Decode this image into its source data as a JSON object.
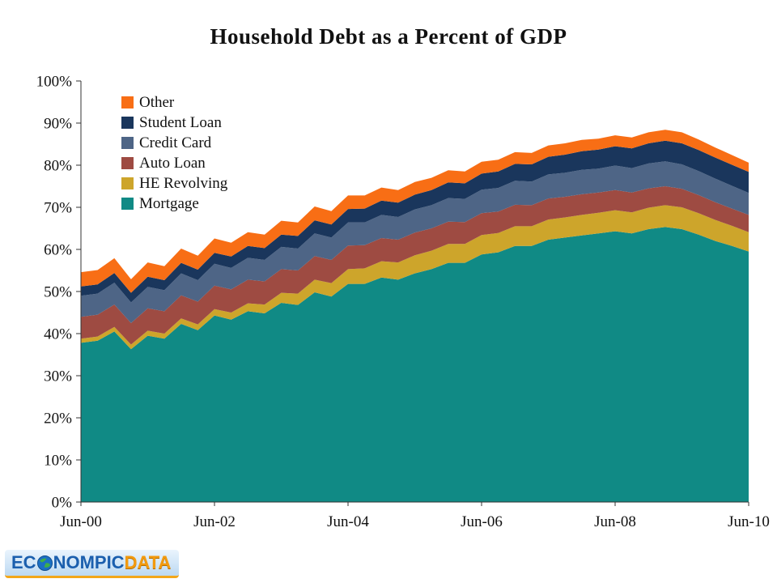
{
  "page": {
    "background": "#ffffff"
  },
  "logo": {
    "text_left": "EC",
    "text_mid": "NOMPIC",
    "text_right": "DATA",
    "blue": "#1b5fae",
    "orange": "#f29a10"
  },
  "chart_data": {
    "type": "area",
    "stacked": true,
    "title": "Household Debt as a Percent of GDP",
    "xlabel": "",
    "ylabel": "",
    "ylim": [
      0,
      100
    ],
    "grid": false,
    "legend_position": "top-left-inside",
    "y_ticks": [
      0,
      10,
      20,
      30,
      40,
      50,
      60,
      70,
      80,
      90,
      100
    ],
    "y_tick_labels": [
      "0%",
      "10%",
      "20%",
      "30%",
      "40%",
      "50%",
      "60%",
      "70%",
      "80%",
      "90%",
      "100%"
    ],
    "x": [
      "Jun-00",
      "Sep-00",
      "Dec-00",
      "Mar-01",
      "Jun-01",
      "Sep-01",
      "Dec-01",
      "Mar-02",
      "Jun-02",
      "Sep-02",
      "Dec-02",
      "Mar-03",
      "Jun-03",
      "Sep-03",
      "Dec-03",
      "Mar-04",
      "Jun-04",
      "Sep-04",
      "Dec-04",
      "Mar-05",
      "Jun-05",
      "Sep-05",
      "Dec-05",
      "Mar-06",
      "Jun-06",
      "Sep-06",
      "Dec-06",
      "Mar-07",
      "Jun-07",
      "Sep-07",
      "Dec-07",
      "Mar-08",
      "Jun-08",
      "Sep-08",
      "Dec-08",
      "Mar-09",
      "Jun-09",
      "Sep-09",
      "Dec-09",
      "Mar-10",
      "Jun-10"
    ],
    "x_ticks": [
      {
        "index": 0,
        "label": "Jun-00"
      },
      {
        "index": 8,
        "label": "Jun-02"
      },
      {
        "index": 16,
        "label": "Jun-04"
      },
      {
        "index": 24,
        "label": "Jun-06"
      },
      {
        "index": 32,
        "label": "Jun-08"
      },
      {
        "index": 40,
        "label": "Jun-10"
      }
    ],
    "series": [
      {
        "name": "Mortgage",
        "color": "#108a85",
        "values": [
          37.8,
          38.3,
          40.5,
          36.3,
          39.5,
          38.8,
          42.3,
          40.8,
          44.3,
          43.3,
          45.3,
          44.8,
          47.3,
          46.8,
          49.8,
          48.8,
          51.8,
          51.8,
          53.3,
          52.8,
          54.3,
          55.3,
          56.8,
          56.8,
          58.8,
          59.3,
          60.8,
          60.8,
          62.3,
          62.8,
          63.3,
          63.8,
          64.3,
          63.8,
          64.8,
          65.3,
          64.8,
          63.5,
          62.0,
          60.8,
          59.5
        ]
      },
      {
        "name": "HE Revolving",
        "color": "#cda52b",
        "values": [
          1.0,
          1.0,
          1.1,
          1.1,
          1.2,
          1.2,
          1.3,
          1.4,
          1.5,
          1.7,
          1.9,
          2.1,
          2.4,
          2.7,
          3.0,
          3.2,
          3.5,
          3.7,
          3.9,
          4.1,
          4.3,
          4.4,
          4.5,
          4.5,
          4.6,
          4.6,
          4.7,
          4.7,
          4.8,
          4.8,
          4.9,
          4.9,
          5.0,
          5.0,
          5.1,
          5.2,
          5.2,
          5.1,
          5.0,
          4.8,
          4.6
        ]
      },
      {
        "name": "Auto Loan",
        "color": "#9e4b42",
        "values": [
          5.2,
          5.2,
          5.3,
          5.1,
          5.3,
          5.3,
          5.5,
          5.4,
          5.6,
          5.5,
          5.6,
          5.5,
          5.6,
          5.5,
          5.6,
          5.5,
          5.6,
          5.5,
          5.5,
          5.4,
          5.4,
          5.3,
          5.3,
          5.2,
          5.2,
          5.1,
          5.1,
          5.0,
          5.0,
          4.9,
          4.9,
          4.8,
          4.8,
          4.7,
          4.6,
          4.5,
          4.4,
          4.3,
          4.2,
          4.1,
          4.1
        ]
      },
      {
        "name": "Credit Card",
        "color": "#4e6586",
        "values": [
          5.0,
          5.0,
          5.2,
          4.9,
          5.1,
          5.0,
          5.2,
          5.1,
          5.2,
          5.1,
          5.2,
          5.1,
          5.3,
          5.2,
          5.4,
          5.3,
          5.5,
          5.4,
          5.5,
          5.4,
          5.5,
          5.5,
          5.6,
          5.5,
          5.6,
          5.6,
          5.7,
          5.6,
          5.7,
          5.7,
          5.8,
          5.7,
          5.8,
          5.8,
          5.9,
          5.9,
          5.8,
          5.7,
          5.6,
          5.4,
          5.2
        ]
      },
      {
        "name": "Student Loan",
        "color": "#1a365c",
        "values": [
          2.2,
          2.2,
          2.3,
          2.3,
          2.4,
          2.4,
          2.5,
          2.5,
          2.6,
          2.7,
          2.8,
          2.8,
          2.9,
          3.0,
          3.1,
          3.1,
          3.2,
          3.3,
          3.4,
          3.4,
          3.5,
          3.6,
          3.7,
          3.7,
          3.8,
          3.9,
          4.0,
          4.1,
          4.2,
          4.3,
          4.4,
          4.5,
          4.6,
          4.7,
          4.8,
          4.9,
          5.0,
          5.0,
          5.0,
          5.0,
          5.0
        ]
      },
      {
        "name": "Other",
        "color": "#f86e15",
        "values": [
          3.4,
          3.4,
          3.5,
          3.2,
          3.4,
          3.3,
          3.4,
          3.3,
          3.4,
          3.3,
          3.3,
          3.2,
          3.3,
          3.2,
          3.3,
          3.2,
          3.2,
          3.1,
          3.1,
          3.0,
          3.0,
          2.9,
          2.9,
          2.8,
          2.8,
          2.8,
          2.8,
          2.7,
          2.7,
          2.7,
          2.7,
          2.6,
          2.6,
          2.6,
          2.6,
          2.6,
          2.6,
          2.5,
          2.4,
          2.3,
          2.2
        ]
      }
    ]
  }
}
